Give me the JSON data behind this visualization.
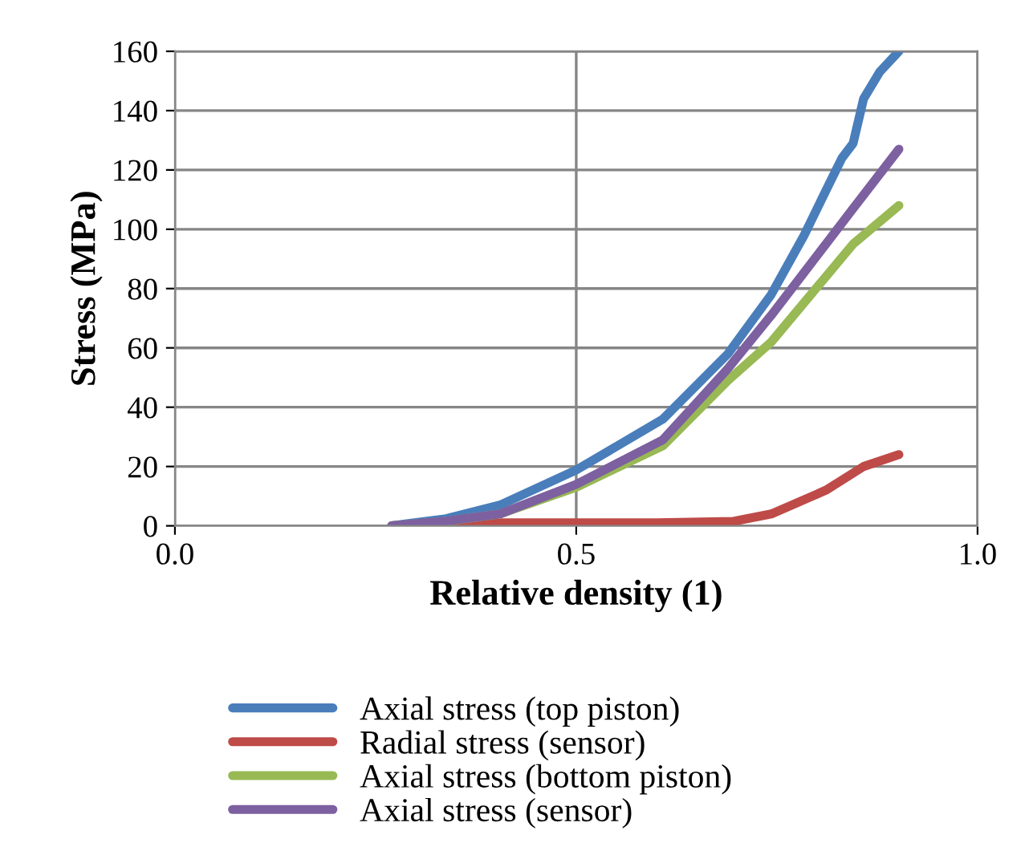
{
  "chart_data": {
    "type": "line",
    "xlabel": "Relative density (1)",
    "ylabel": "Stress (MPa)",
    "xlim": [
      0,
      1
    ],
    "xticks": [
      {
        "value": 0,
        "label": "0.0"
      },
      {
        "value": 0.5,
        "label": "0.5"
      },
      {
        "value": 1,
        "label": "1.0"
      }
    ],
    "ylim": [
      0,
      160
    ],
    "yticks": [
      0,
      20,
      40,
      60,
      80,
      100,
      120,
      140,
      160
    ],
    "grid": true,
    "legend": "bottom",
    "marker": "none",
    "line_style": "solid",
    "series": [
      {
        "name": "Axial stress (top piston)",
        "color": "#4a7ebb",
        "x": [
          0.27,
          0.338,
          0.405,
          0.5,
          0.608,
          0.689,
          0.743,
          0.784,
          0.811,
          0.831,
          0.845,
          0.858,
          0.878,
          0.902
        ],
        "values": [
          0,
          2.4,
          7,
          18.8,
          36,
          58,
          78,
          98,
          113,
          124,
          129,
          144,
          153,
          160
        ]
      },
      {
        "name": "Radial stress (sensor)",
        "color": "#be4b48",
        "x": [
          0.27,
          0.4,
          0.5,
          0.6,
          0.696,
          0.743,
          0.811,
          0.858,
          0.902
        ],
        "values": [
          0,
          1,
          1,
          1,
          1.5,
          4,
          12,
          20,
          24
        ]
      },
      {
        "name": "Axial stress (bottom piston)",
        "color": "#98b954",
        "x": [
          0.27,
          0.338,
          0.405,
          0.5,
          0.608,
          0.689,
          0.743,
          0.811,
          0.845,
          0.902
        ],
        "values": [
          0,
          1.5,
          4,
          13,
          27,
          49,
          62,
          84,
          95,
          108
        ]
      },
      {
        "name": "Axial stress (sensor)",
        "color": "#7d60a0",
        "x": [
          0.27,
          0.338,
          0.405,
          0.5,
          0.608,
          0.689,
          0.743,
          0.811,
          0.845,
          0.902
        ],
        "values": [
          0,
          1.6,
          4,
          14,
          29,
          53,
          71,
          95,
          107,
          127
        ]
      }
    ]
  }
}
